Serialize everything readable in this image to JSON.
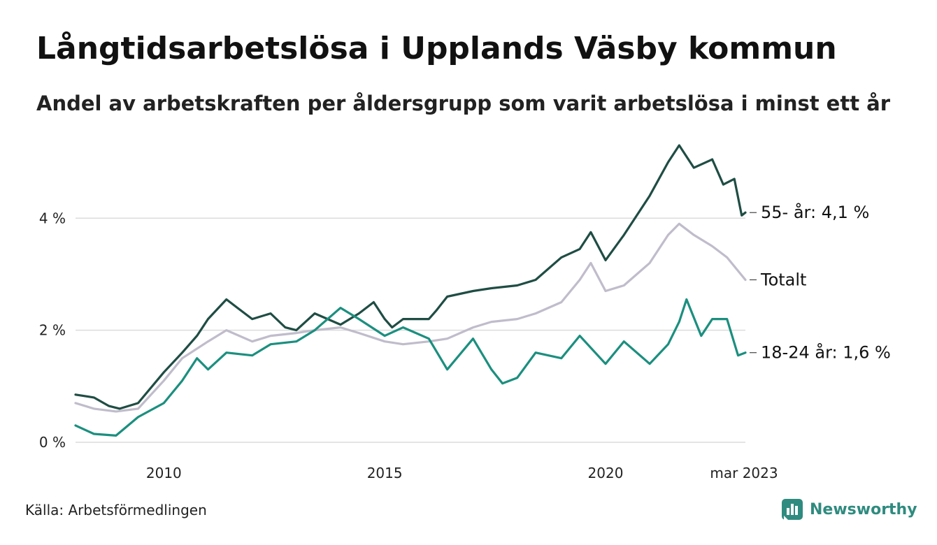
{
  "title": "Långtidsarbetslösa i Upplands Väsby kommun",
  "subtitle": "Andel av arbetskraften per åldersgrupp som varit arbetslösa i minst ett år",
  "source": "Källa: Arbetsförmedlingen",
  "brand": {
    "name": "Newsworthy",
    "icon": "newsworthy-logo-icon",
    "color": "#2f8b7f"
  },
  "chart_data": {
    "type": "line",
    "xlim": [
      "2008-01",
      "2023-03"
    ],
    "ylim": [
      0,
      5.4
    ],
    "grid": true,
    "x_ticks": [
      {
        "x": "2010-01",
        "label": "2010"
      },
      {
        "x": "2015-01",
        "label": "2015"
      },
      {
        "x": "2020-01",
        "label": "2020"
      },
      {
        "x": "2023-03",
        "label": "mar 2023"
      }
    ],
    "y_ticks": [
      {
        "y": 0,
        "label": "0 %"
      },
      {
        "y": 2,
        "label": "2 %"
      },
      {
        "y": 4,
        "label": "4 %"
      }
    ],
    "series": [
      {
        "name": "Totalt",
        "end_label": "Totalt",
        "color": "#c0bccb",
        "points": [
          [
            "2008-01",
            0.7
          ],
          [
            "2008-06",
            0.6
          ],
          [
            "2008-12",
            0.55
          ],
          [
            "2009-06",
            0.6
          ],
          [
            "2010-01",
            1.1
          ],
          [
            "2010-06",
            1.5
          ],
          [
            "2011-01",
            1.8
          ],
          [
            "2011-06",
            2.0
          ],
          [
            "2012-01",
            1.8
          ],
          [
            "2012-06",
            1.9
          ],
          [
            "2013-01",
            1.95
          ],
          [
            "2013-06",
            2.0
          ],
          [
            "2014-01",
            2.05
          ],
          [
            "2014-06",
            1.95
          ],
          [
            "2015-01",
            1.8
          ],
          [
            "2015-06",
            1.75
          ],
          [
            "2016-01",
            1.8
          ],
          [
            "2016-06",
            1.85
          ],
          [
            "2017-01",
            2.05
          ],
          [
            "2017-06",
            2.15
          ],
          [
            "2018-01",
            2.2
          ],
          [
            "2018-06",
            2.3
          ],
          [
            "2019-01",
            2.5
          ],
          [
            "2019-06",
            2.9
          ],
          [
            "2019-09",
            3.2
          ],
          [
            "2020-01",
            2.7
          ],
          [
            "2020-06",
            2.8
          ],
          [
            "2021-01",
            3.2
          ],
          [
            "2021-06",
            3.7
          ],
          [
            "2021-09",
            3.9
          ],
          [
            "2022-01",
            3.7
          ],
          [
            "2022-06",
            3.5
          ],
          [
            "2022-10",
            3.3
          ],
          [
            "2023-03",
            2.9
          ]
        ]
      },
      {
        "name": "55- år",
        "end_label": "55- år: 4,1 %",
        "color": "#1f4d43",
        "points": [
          [
            "2008-01",
            0.85
          ],
          [
            "2008-06",
            0.8
          ],
          [
            "2008-10",
            0.65
          ],
          [
            "2009-01",
            0.6
          ],
          [
            "2009-06",
            0.7
          ],
          [
            "2010-01",
            1.25
          ],
          [
            "2010-06",
            1.6
          ],
          [
            "2010-10",
            1.9
          ],
          [
            "2011-01",
            2.2
          ],
          [
            "2011-06",
            2.55
          ],
          [
            "2011-09",
            2.4
          ],
          [
            "2012-01",
            2.2
          ],
          [
            "2012-06",
            2.3
          ],
          [
            "2012-10",
            2.05
          ],
          [
            "2013-01",
            2.0
          ],
          [
            "2013-06",
            2.3
          ],
          [
            "2014-01",
            2.1
          ],
          [
            "2014-06",
            2.3
          ],
          [
            "2014-10",
            2.5
          ],
          [
            "2015-01",
            2.2
          ],
          [
            "2015-03",
            2.05
          ],
          [
            "2015-06",
            2.2
          ],
          [
            "2016-01",
            2.2
          ],
          [
            "2016-03",
            2.35
          ],
          [
            "2016-06",
            2.6
          ],
          [
            "2017-01",
            2.7
          ],
          [
            "2017-06",
            2.75
          ],
          [
            "2018-01",
            2.8
          ],
          [
            "2018-06",
            2.9
          ],
          [
            "2019-01",
            3.3
          ],
          [
            "2019-06",
            3.45
          ],
          [
            "2019-09",
            3.75
          ],
          [
            "2020-01",
            3.25
          ],
          [
            "2020-06",
            3.7
          ],
          [
            "2021-01",
            4.4
          ],
          [
            "2021-06",
            5.0
          ],
          [
            "2021-09",
            5.3
          ],
          [
            "2022-01",
            4.9
          ],
          [
            "2022-06",
            5.05
          ],
          [
            "2022-09",
            4.6
          ],
          [
            "2022-12",
            4.7
          ],
          [
            "2023-02",
            4.05
          ],
          [
            "2023-03",
            4.1
          ]
        ]
      },
      {
        "name": "18-24 år",
        "end_label": "18-24 år: 1,6 %",
        "color": "#1b8f7f",
        "points": [
          [
            "2008-01",
            0.3
          ],
          [
            "2008-06",
            0.15
          ],
          [
            "2008-12",
            0.12
          ],
          [
            "2009-06",
            0.45
          ],
          [
            "2010-01",
            0.7
          ],
          [
            "2010-06",
            1.1
          ],
          [
            "2010-10",
            1.5
          ],
          [
            "2011-01",
            1.3
          ],
          [
            "2011-06",
            1.6
          ],
          [
            "2012-01",
            1.55
          ],
          [
            "2012-06",
            1.75
          ],
          [
            "2013-01",
            1.8
          ],
          [
            "2013-06",
            2.0
          ],
          [
            "2014-01",
            2.4
          ],
          [
            "2014-06",
            2.2
          ],
          [
            "2015-01",
            1.9
          ],
          [
            "2015-06",
            2.05
          ],
          [
            "2016-01",
            1.85
          ],
          [
            "2016-06",
            1.3
          ],
          [
            "2017-01",
            1.85
          ],
          [
            "2017-06",
            1.3
          ],
          [
            "2017-09",
            1.05
          ],
          [
            "2018-01",
            1.15
          ],
          [
            "2018-06",
            1.6
          ],
          [
            "2019-01",
            1.5
          ],
          [
            "2019-06",
            1.9
          ],
          [
            "2020-01",
            1.4
          ],
          [
            "2020-06",
            1.8
          ],
          [
            "2021-01",
            1.4
          ],
          [
            "2021-06",
            1.75
          ],
          [
            "2021-09",
            2.15
          ],
          [
            "2021-11",
            2.55
          ],
          [
            "2022-03",
            1.9
          ],
          [
            "2022-06",
            2.2
          ],
          [
            "2022-10",
            2.2
          ],
          [
            "2023-01",
            1.55
          ],
          [
            "2023-03",
            1.6
          ]
        ]
      }
    ]
  }
}
